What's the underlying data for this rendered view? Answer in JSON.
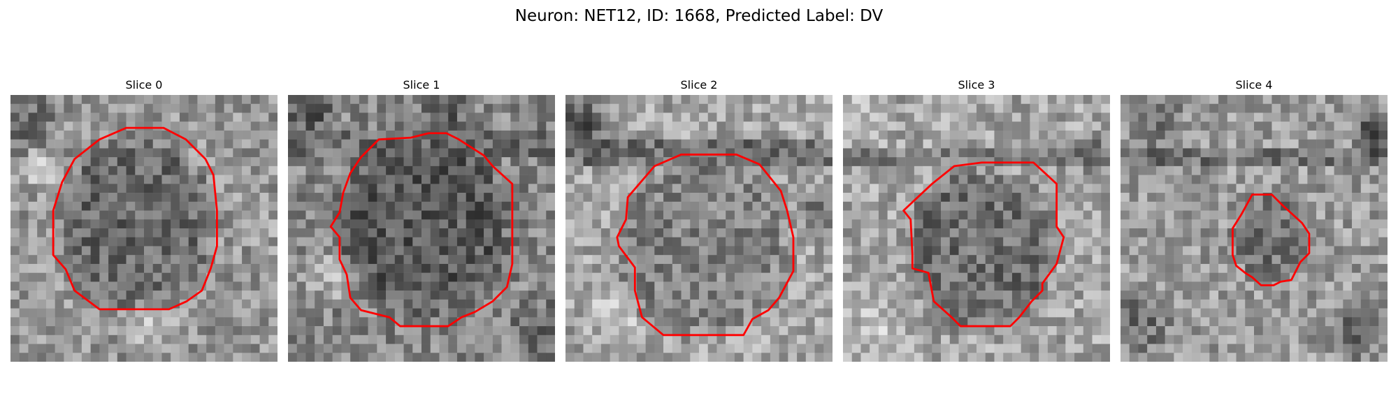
{
  "figure": {
    "title": "Neuron: NET12, ID: 1668, Predicted Label: DV"
  },
  "colors": {
    "contour": "#ff0000"
  },
  "panels": [
    {
      "title": "Slice 0"
    },
    {
      "title": "Slice 1"
    },
    {
      "title": "Slice 2"
    },
    {
      "title": "Slice 3"
    },
    {
      "title": "Slice 4"
    }
  ]
}
